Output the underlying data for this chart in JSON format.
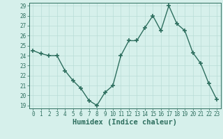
{
  "x": [
    0,
    1,
    2,
    3,
    4,
    5,
    6,
    7,
    8,
    9,
    10,
    11,
    12,
    13,
    14,
    15,
    16,
    17,
    18,
    19,
    20,
    21,
    22,
    23
  ],
  "y": [
    24.5,
    24.2,
    24.0,
    24.0,
    22.5,
    21.5,
    20.7,
    19.5,
    19.0,
    20.3,
    21.0,
    24.0,
    25.5,
    25.5,
    26.8,
    28.0,
    26.5,
    29.0,
    27.2,
    26.5,
    24.3,
    23.2,
    21.2,
    19.6
  ],
  "line_color": "#2d6e5e",
  "marker": "+",
  "marker_size": 4,
  "marker_lw": 1.2,
  "line_width": 1.0,
  "bg_color": "#d6f0eb",
  "grid_color": "#b8ddd6",
  "xlabel": "Humidex (Indice chaleur)",
  "ylim": [
    19,
    29
  ],
  "xlim": [
    -0.5,
    23.5
  ],
  "yticks": [
    19,
    20,
    21,
    22,
    23,
    24,
    25,
    26,
    27,
    28,
    29
  ],
  "xticks": [
    0,
    1,
    2,
    3,
    4,
    5,
    6,
    7,
    8,
    9,
    10,
    11,
    12,
    13,
    14,
    15,
    16,
    17,
    18,
    19,
    20,
    21,
    22,
    23
  ],
  "tick_label_fontsize": 5.5,
  "xlabel_fontsize": 7.5,
  "spine_color": "#2d6e5e"
}
